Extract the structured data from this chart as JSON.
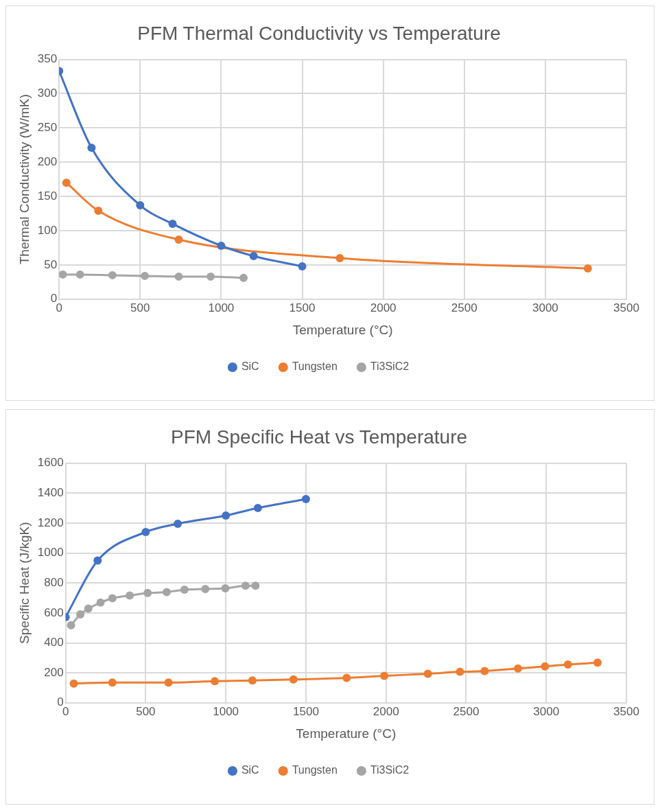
{
  "chart_data": [
    {
      "type": "line",
      "title": "PFM Thermal Conductivity vs Temperature",
      "xlabel": "Temperature (°C)",
      "ylabel": "Thermal Conductivity (W/mK)",
      "xlim": [
        0,
        3500
      ],
      "xticks": [
        0,
        500,
        1000,
        1500,
        2000,
        2500,
        3000,
        3500
      ],
      "ylim": [
        0,
        350
      ],
      "yticks": [
        0,
        50,
        100,
        150,
        200,
        250,
        300,
        350
      ],
      "grid": true,
      "legend": "bottom",
      "marker": "circle",
      "line_style": "solid",
      "series": [
        {
          "name": "SiC",
          "color": "#4472c4",
          "x": [
            0,
            200,
            500,
            700,
            1000,
            1200,
            1500
          ],
          "values": [
            333,
            221,
            137,
            110,
            78,
            63,
            48
          ]
        },
        {
          "name": "Tungsten",
          "color": "#ed7d31",
          "x": [
            45,
            242,
            738,
            1732,
            3262
          ],
          "values": [
            170,
            129,
            87,
            60,
            45
          ]
        },
        {
          "name": "Ti3SiC2",
          "color": "#a5a5a5",
          "x": [
            23,
            129,
            329,
            529,
            738,
            935,
            1138
          ],
          "values": [
            36,
            36,
            35,
            34,
            33,
            33,
            31
          ]
        }
      ]
    },
    {
      "type": "line",
      "title": "PFM Specific Heat vs Temperature",
      "xlabel": "Temperature (°C)",
      "ylabel": "Specific Heat (J/kgK)",
      "xlim": [
        0,
        3500
      ],
      "xticks": [
        0,
        500,
        1000,
        1500,
        2000,
        2500,
        3000,
        3500
      ],
      "ylim": [
        0,
        1600
      ],
      "yticks": [
        0,
        200,
        400,
        600,
        800,
        1000,
        1200,
        1400,
        1600
      ],
      "grid": true,
      "legend": "bottom",
      "marker": "circle",
      "line_style": "solid",
      "series": [
        {
          "name": "SiC",
          "color": "#4472c4",
          "x": [
            0,
            200,
            500,
            700,
            1000,
            1200,
            1500
          ],
          "values": [
            572,
            950,
            1140,
            1195,
            1250,
            1300,
            1360
          ]
        },
        {
          "name": "Tungsten",
          "color": "#ed7d31",
          "x": [
            51,
            292,
            642,
            931,
            1166,
            1422,
            1754,
            1989,
            2261,
            2461,
            2615,
            2823,
            2992,
            3135,
            3320
          ],
          "values": [
            129,
            135,
            135,
            144,
            149,
            156,
            166,
            180,
            194,
            207,
            212,
            229,
            243,
            256,
            268
          ]
        },
        {
          "name": "Ti3SiC2",
          "color": "#a5a5a5",
          "x": [
            34,
            92,
            142,
            218,
            292,
            400,
            512,
            631,
            742,
            872,
            997,
            1123,
            1185
          ],
          "values": [
            518,
            590,
            629,
            669,
            698,
            716,
            733,
            739,
            755,
            760,
            764,
            782,
            782
          ]
        }
      ]
    }
  ]
}
